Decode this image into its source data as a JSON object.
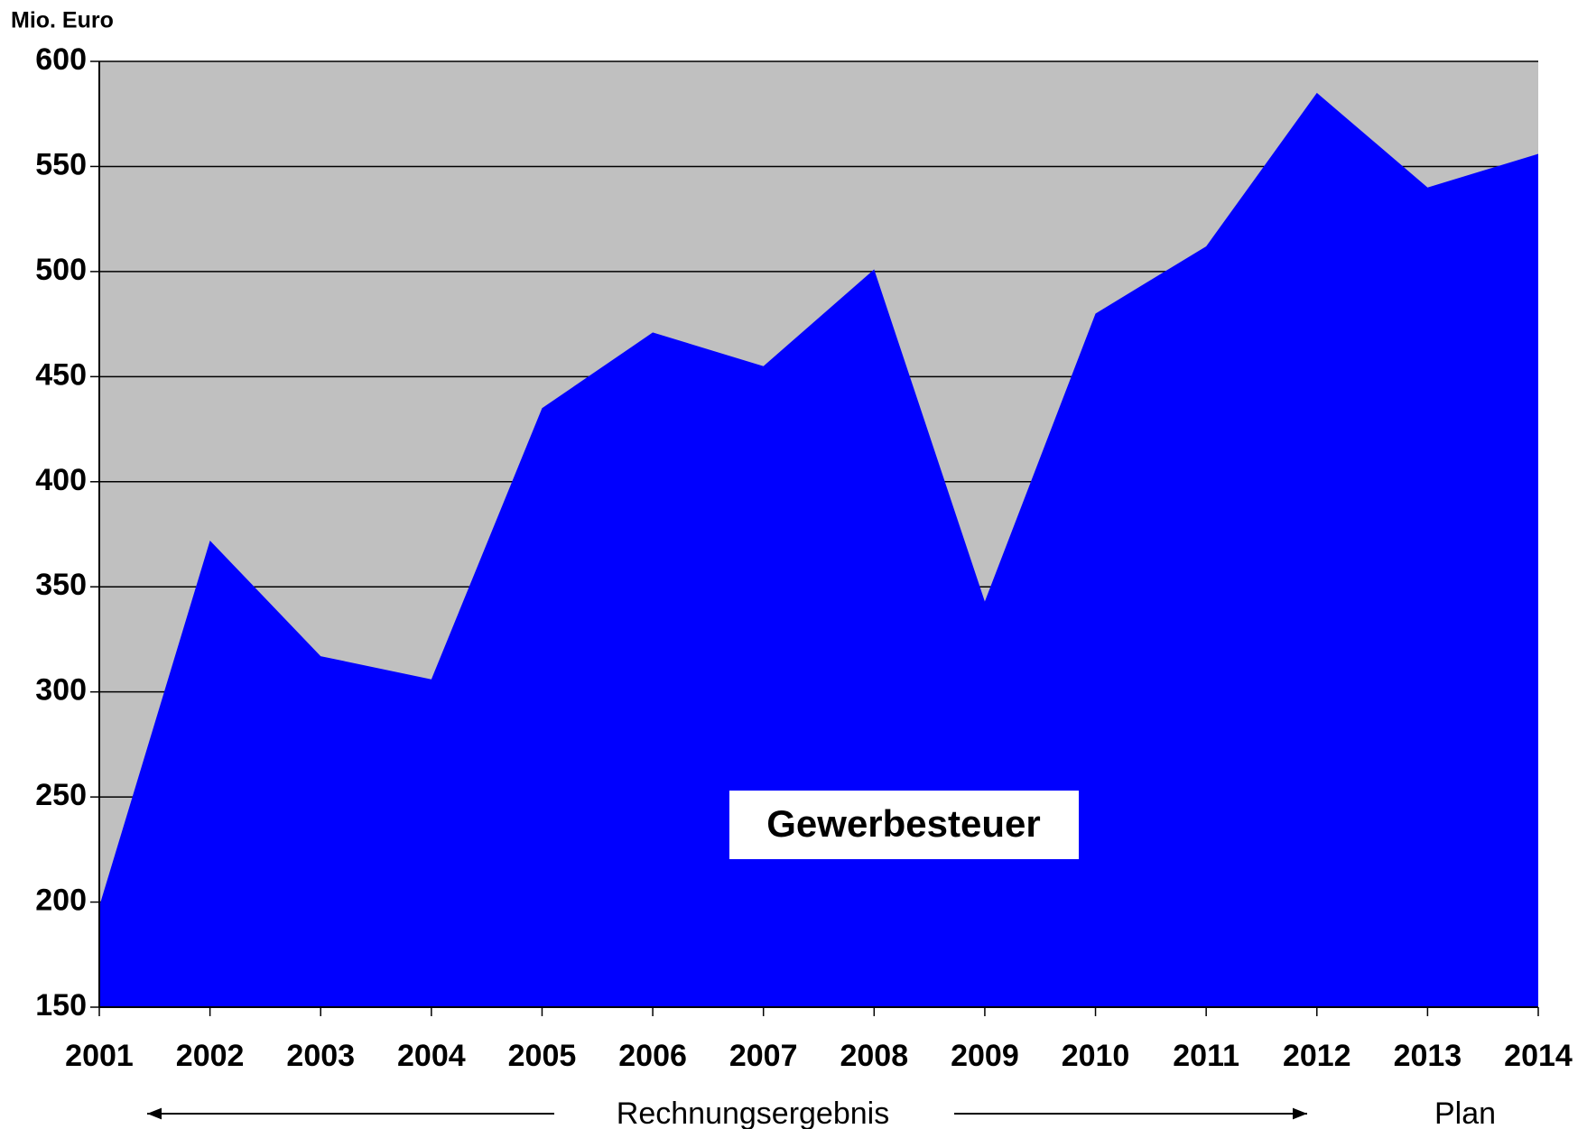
{
  "chart_data": {
    "type": "area",
    "y_axis_label": "Mio. Euro",
    "categories": [
      "2001",
      "2002",
      "2003",
      "2004",
      "2005",
      "2006",
      "2007",
      "2008",
      "2009",
      "2010",
      "2011",
      "2012",
      "2013",
      "2014"
    ],
    "series": [
      {
        "name": "Gewerbesteuer",
        "color": "#0000ff",
        "values": [
          198,
          372,
          317,
          306,
          435,
          471,
          455,
          501,
          343,
          480,
          512,
          585,
          540,
          556
        ]
      }
    ],
    "ylim": [
      150,
      600
    ],
    "yticks": [
      150,
      200,
      250,
      300,
      350,
      400,
      450,
      500,
      550,
      600
    ],
    "grid": true,
    "plot_background": "#c0c0c0",
    "annotations": {
      "actual": "Rechnungsergebnis",
      "plan": "Plan"
    }
  }
}
